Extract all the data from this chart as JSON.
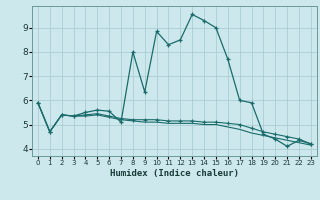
{
  "background_color": "#cce8ec",
  "grid_color": "#aacdd4",
  "line_color": "#1a6b6b",
  "xlabel": "Humidex (Indice chaleur)",
  "ylim": [
    3.7,
    9.9
  ],
  "xlim": [
    -0.5,
    23.5
  ],
  "yticks": [
    4,
    5,
    6,
    7,
    8,
    9
  ],
  "xticks": [
    0,
    1,
    2,
    3,
    4,
    5,
    6,
    7,
    8,
    9,
    10,
    11,
    12,
    13,
    14,
    15,
    16,
    17,
    18,
    19,
    20,
    21,
    22,
    23
  ],
  "series1_x": [
    0,
    1,
    2,
    3,
    4,
    5,
    6,
    7,
    8,
    9,
    10,
    11,
    12,
    13,
    14,
    15,
    16,
    17,
    18,
    19,
    20,
    21,
    22,
    23
  ],
  "series1_y": [
    5.9,
    4.7,
    5.4,
    5.35,
    5.5,
    5.6,
    5.55,
    5.1,
    8.0,
    6.35,
    8.85,
    8.3,
    8.5,
    9.55,
    9.3,
    9.0,
    7.7,
    6.0,
    5.9,
    4.6,
    4.4,
    4.1,
    4.35,
    4.2
  ],
  "series2_x": [
    0,
    1,
    2,
    3,
    4,
    5,
    6,
    7,
    8,
    9,
    10,
    11,
    12,
    13,
    14,
    15,
    16,
    17,
    18,
    19,
    20,
    21,
    22,
    23
  ],
  "series2_y": [
    5.9,
    4.7,
    5.4,
    5.35,
    5.4,
    5.45,
    5.35,
    5.25,
    5.2,
    5.2,
    5.2,
    5.15,
    5.15,
    5.15,
    5.1,
    5.1,
    5.05,
    5.0,
    4.85,
    4.7,
    4.6,
    4.5,
    4.4,
    4.2
  ],
  "series3_x": [
    0,
    1,
    2,
    3,
    4,
    5,
    6,
    7,
    8,
    9,
    10,
    11,
    12,
    13,
    14,
    15,
    16,
    17,
    18,
    19,
    20,
    21,
    22,
    23
  ],
  "series3_y": [
    5.9,
    4.7,
    5.4,
    5.35,
    5.35,
    5.4,
    5.3,
    5.2,
    5.15,
    5.1,
    5.1,
    5.05,
    5.05,
    5.05,
    5.0,
    5.0,
    4.9,
    4.8,
    4.65,
    4.55,
    4.45,
    4.35,
    4.25,
    4.15
  ]
}
